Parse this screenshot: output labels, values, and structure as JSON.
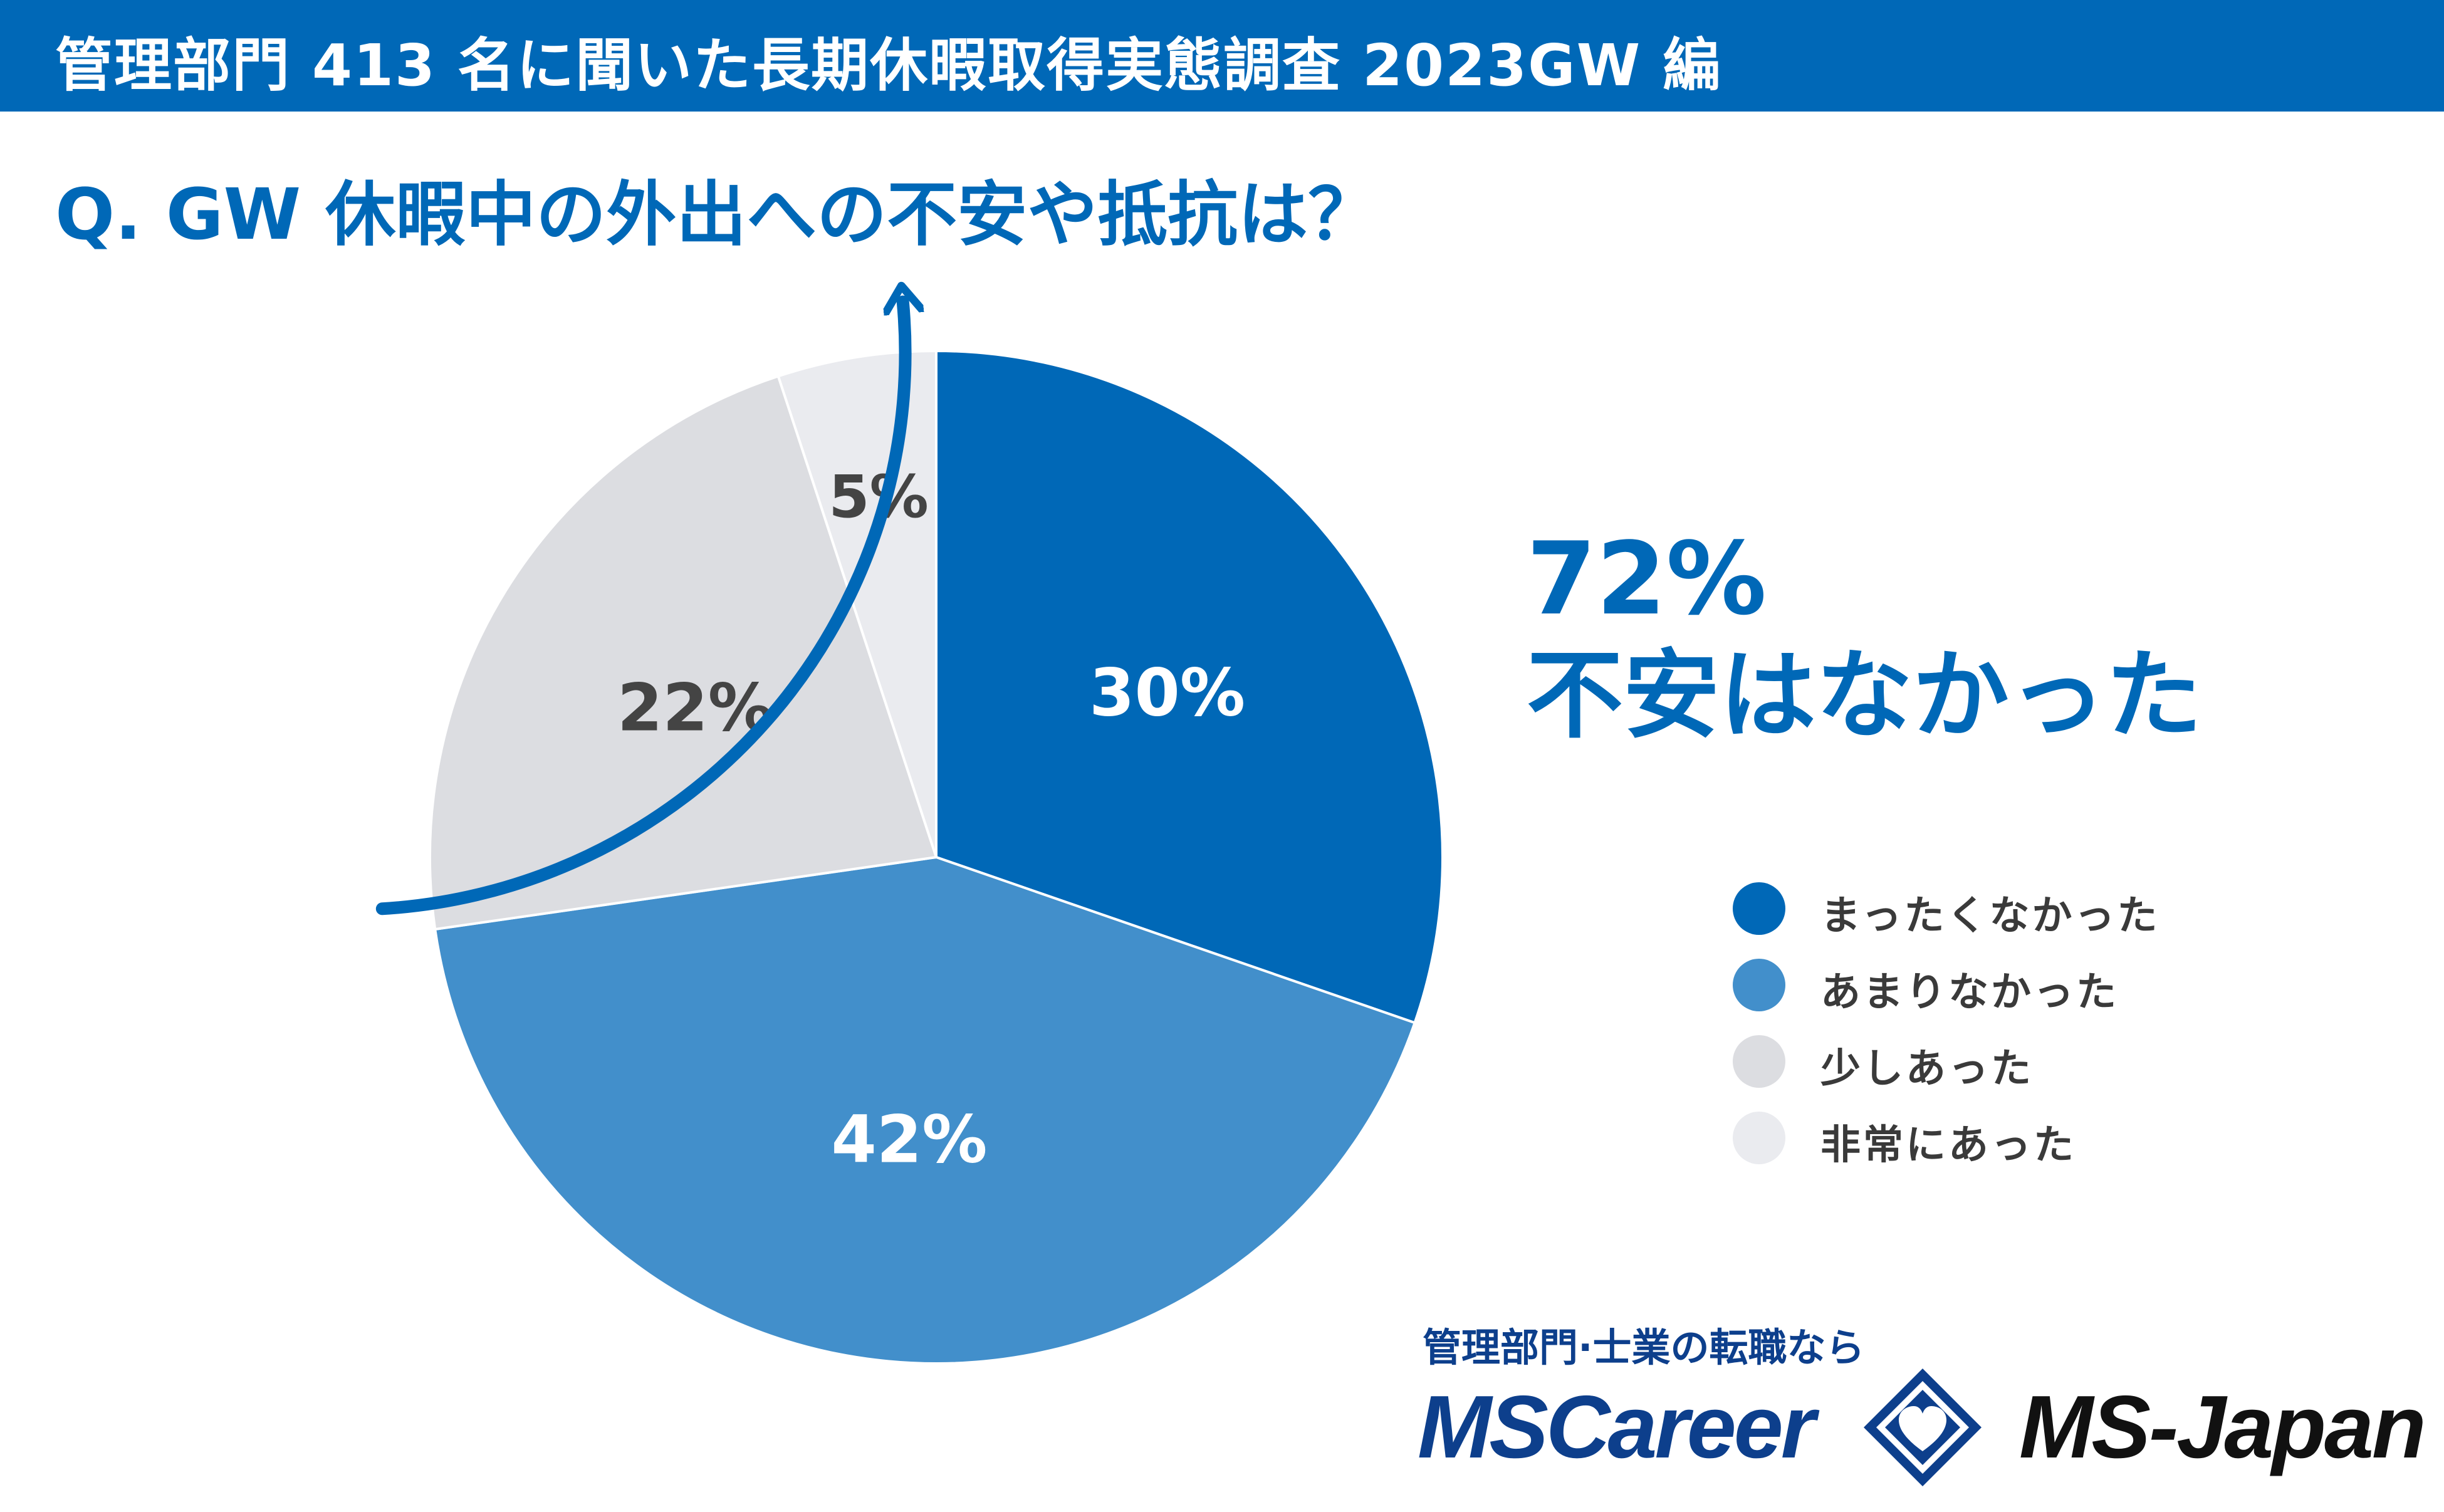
{
  "header": {
    "title": "管理部門 413 名に聞いた長期休暇取得実態調査 2023GW 編"
  },
  "question": {
    "title": "Q. GW 休暇中の外出への不安や抵抗は？"
  },
  "callout": {
    "percent": "72%",
    "text": "不安はなかった"
  },
  "chart_data": {
    "type": "pie",
    "categories": [
      "まったくなかった",
      "あまりなかった",
      "少しあった",
      "非常にあった"
    ],
    "values": [
      30,
      42,
      22,
      5
    ],
    "labels": [
      "30%",
      "42%",
      "22%",
      "5%"
    ],
    "colors": [
      "#0068b7",
      "#428fcb",
      "#dcdde1",
      "#eaebef"
    ],
    "label_colors": [
      "#ffffff",
      "#ffffff",
      "#444444",
      "#444444"
    ],
    "start": "12 o'clock",
    "direction": "clockwise",
    "legend_position": "right"
  },
  "legend": {
    "items": [
      {
        "label": "まったくなかった",
        "color": "#0068b7"
      },
      {
        "label": "あまりなかった",
        "color": "#428fcb"
      },
      {
        "label": "少しあった",
        "color": "#dcdde1"
      },
      {
        "label": "非常にあった",
        "color": "#eaebef"
      }
    ]
  },
  "brand": {
    "tagline": "管理部門·士業の転職なら",
    "mscareer": "MSCareer",
    "msjapan": "MS-Japan"
  },
  "colors": {
    "accent": "#0068b7",
    "brand_navy": "#0d3f8c"
  },
  "icons": {
    "arrow": "curved-arrow-icon",
    "logo": "diamond-heart-logo-icon"
  }
}
